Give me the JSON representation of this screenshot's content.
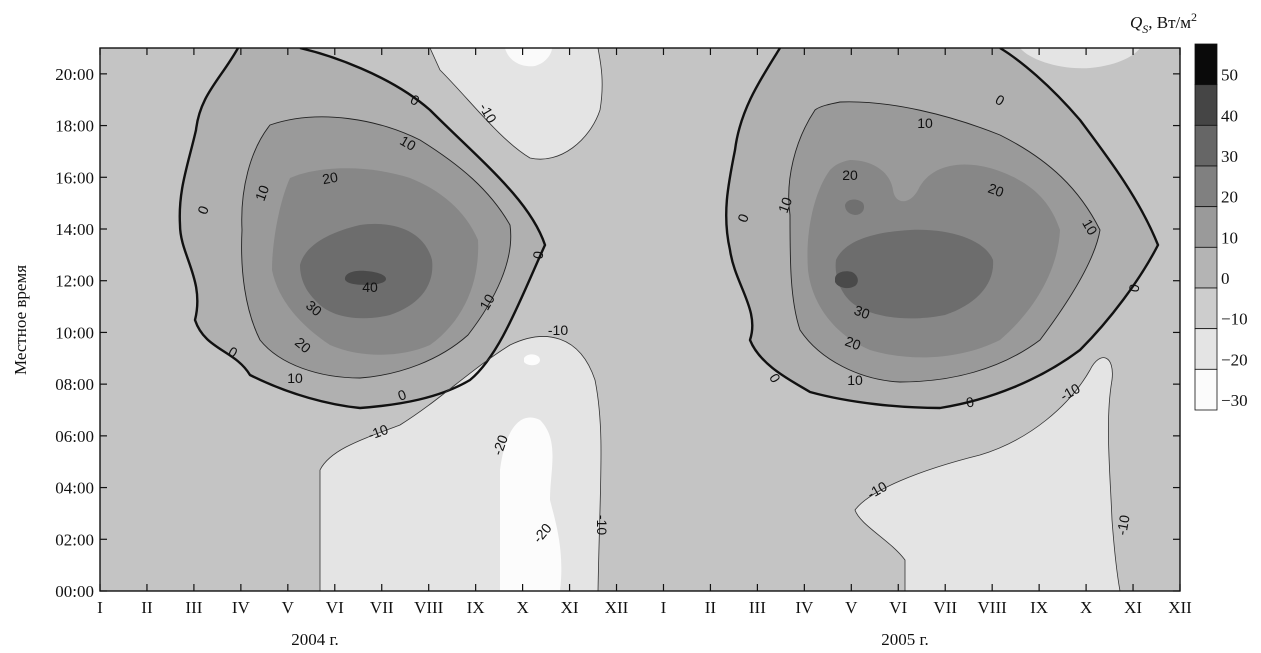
{
  "chart_data": {
    "type": "contour",
    "ylabel": "Местное время",
    "y_ticks": [
      "00:00",
      "02:00",
      "04:00",
      "06:00",
      "08:00",
      "10:00",
      "12:00",
      "14:00",
      "16:00",
      "18:00",
      "20:00"
    ],
    "x_ticks": [
      "I",
      "II",
      "III",
      "IV",
      "V",
      "VI",
      "VII",
      "VIII",
      "IX",
      "X",
      "XI",
      "XII",
      "I",
      "II",
      "III",
      "IV",
      "V",
      "VI",
      "VII",
      "VIII",
      "IX",
      "X",
      "XI",
      "XII"
    ],
    "x_years": [
      "2004 г.",
      "2005 г."
    ],
    "unit_label": {
      "symbol": "Q",
      "subscript": "S",
      "suffix": ", Вт/м",
      "superscript": "2"
    },
    "colorbar": {
      "levels": [
        50,
        40,
        30,
        20,
        10,
        0,
        -10,
        -20,
        -30
      ],
      "level_labels": [
        "50",
        "40",
        "30",
        "20",
        "10",
        "0",
        "−10",
        "−20",
        "−30"
      ],
      "colors": [
        "#0a0a0a",
        "#454545",
        "#666666",
        "#808080",
        "#9a9a9a",
        "#b4b4b4",
        "#cdcdcd",
        "#e4e4e4",
        "#fbfbfb"
      ]
    },
    "contour_labels": [
      {
        "id": "a1",
        "text": "0"
      },
      {
        "id": "a2",
        "text": "0"
      },
      {
        "id": "a3",
        "text": "0"
      },
      {
        "id": "a4",
        "text": "0"
      },
      {
        "id": "a5",
        "text": "0"
      },
      {
        "id": "a6",
        "text": "10"
      },
      {
        "id": "a7",
        "text": "10"
      },
      {
        "id": "a8",
        "text": "10"
      },
      {
        "id": "a9",
        "text": "10"
      },
      {
        "id": "a10",
        "text": "20"
      },
      {
        "id": "a11",
        "text": "20"
      },
      {
        "id": "a12",
        "text": "30"
      },
      {
        "id": "a13",
        "text": "40"
      },
      {
        "id": "a14",
        "text": "-10"
      },
      {
        "id": "a15",
        "text": "-10"
      },
      {
        "id": "a16",
        "text": "-10"
      },
      {
        "id": "a17",
        "text": "-10"
      },
      {
        "id": "a18",
        "text": "-20"
      },
      {
        "id": "a19",
        "text": "-20"
      },
      {
        "id": "b1",
        "text": "0"
      },
      {
        "id": "b2",
        "text": "0"
      },
      {
        "id": "b3",
        "text": "0"
      },
      {
        "id": "b4",
        "text": "0"
      },
      {
        "id": "b5",
        "text": "0"
      },
      {
        "id": "b6",
        "text": "10"
      },
      {
        "id": "b7",
        "text": "10"
      },
      {
        "id": "b8",
        "text": "10"
      },
      {
        "id": "b9",
        "text": "10"
      },
      {
        "id": "b10",
        "text": "20"
      },
      {
        "id": "b11",
        "text": "20"
      },
      {
        "id": "b12",
        "text": "20"
      },
      {
        "id": "b13",
        "text": "30"
      },
      {
        "id": "b14",
        "text": "-10"
      },
      {
        "id": "b15",
        "text": "-10"
      },
      {
        "id": "b16",
        "text": "-10"
      }
    ]
  }
}
